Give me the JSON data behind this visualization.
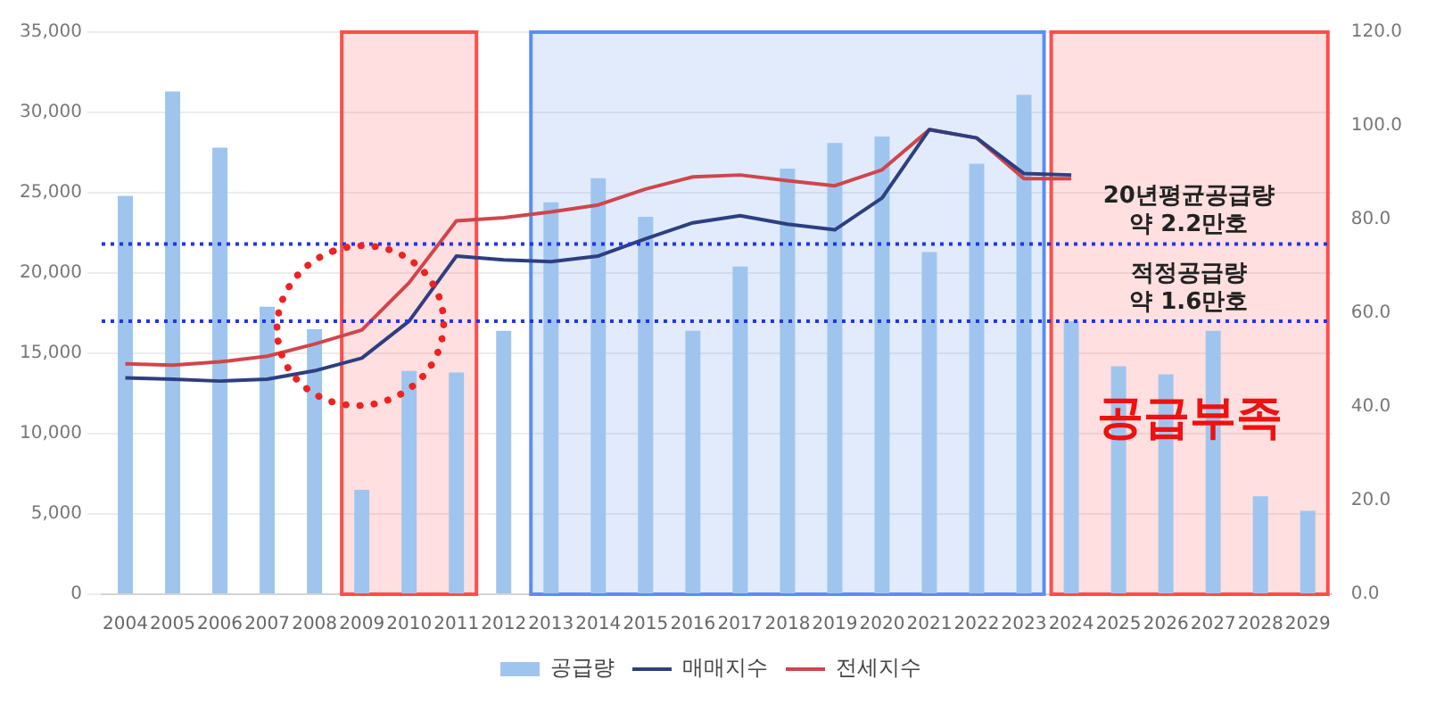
{
  "chart_data": {
    "type": "bar",
    "categories": [
      "2004",
      "2005",
      "2006",
      "2007",
      "2008",
      "2009",
      "2010",
      "2011",
      "2012",
      "2013",
      "2014",
      "2015",
      "2016",
      "2017",
      "2018",
      "2019",
      "2020",
      "2021",
      "2022",
      "2023",
      "2024",
      "2025",
      "2026",
      "2027",
      "2028",
      "2029"
    ],
    "series": [
      {
        "name": "공급량",
        "color": "#9fc5ee",
        "values": [
          24800,
          31300,
          27800,
          17900,
          16500,
          6500,
          13900,
          13800,
          16400,
          24400,
          25900,
          23500,
          16400,
          20400,
          26500,
          28100,
          28500,
          21300,
          26800,
          31100,
          17000,
          14200,
          13700,
          16400,
          6100,
          5200
        ]
      },
      {
        "name": "매매지수",
        "type": "line",
        "axis": "y2",
        "color": "#2e3f80",
        "values": [
          46.2,
          45.9,
          45.5,
          45.9,
          47.7,
          50.4,
          58.3,
          72.2,
          71.4,
          71.0,
          72.2,
          75.9,
          79.3,
          80.8,
          79.0,
          77.8,
          84.6,
          99.2,
          97.4,
          89.8,
          89.5,
          null,
          null,
          null,
          null,
          null
        ]
      },
      {
        "name": "전세지수",
        "type": "line",
        "axis": "y2",
        "color": "#d0454c",
        "values": [
          49.2,
          48.9,
          49.6,
          50.8,
          53.4,
          56.4,
          66.5,
          79.7,
          80.4,
          81.6,
          83.1,
          86.5,
          89.1,
          89.5,
          88.3,
          87.2,
          90.6,
          99.2,
          97.4,
          88.7,
          88.7,
          null,
          null,
          null,
          null,
          null
        ]
      }
    ],
    "ylim": [
      0,
      35000
    ],
    "yticks": [
      {
        "value": 0,
        "label": "0"
      },
      {
        "value": 5000,
        "label": "5,000"
      },
      {
        "value": 10000,
        "label": "10,000"
      },
      {
        "value": 15000,
        "label": "15,000"
      },
      {
        "value": 20000,
        "label": "20,000"
      },
      {
        "value": 25000,
        "label": "25,000"
      },
      {
        "value": 30000,
        "label": "30,000"
      },
      {
        "value": 35000,
        "label": "35,000"
      }
    ],
    "y2lim": [
      0,
      120
    ],
    "y2ticks": [
      {
        "value": 0,
        "label": "0.0"
      },
      {
        "value": 20,
        "label": "20.0"
      },
      {
        "value": 40,
        "label": "40.0"
      },
      {
        "value": 60,
        "label": "60.0"
      },
      {
        "value": 80,
        "label": "80.0"
      },
      {
        "value": 100,
        "label": "100.0"
      },
      {
        "value": 120,
        "label": "120.0"
      }
    ],
    "ref_lines": [
      {
        "axis": "y",
        "value": 21800,
        "label": "20년평균공급량\n약 2.2만호",
        "color": "#2233ee",
        "line_style": "dotted"
      },
      {
        "axis": "y",
        "value": 17000,
        "label": "적정공급량\n약 1.6만호",
        "color": "#2233ee",
        "line_style": "dotted"
      }
    ],
    "bands": [
      {
        "axis": "x",
        "from": "2009",
        "to": "2011",
        "color": "#ff4d4d"
      },
      {
        "axis": "x",
        "from": "2013",
        "to": "2023",
        "color": "#5b8ff0"
      },
      {
        "axis": "x",
        "from": "2024",
        "to": "2029",
        "label": "공급부족",
        "color": "#ff4d4d"
      }
    ],
    "grid": "y",
    "legend": "bottom",
    "marker": "none",
    "line_style": "solid"
  }
}
